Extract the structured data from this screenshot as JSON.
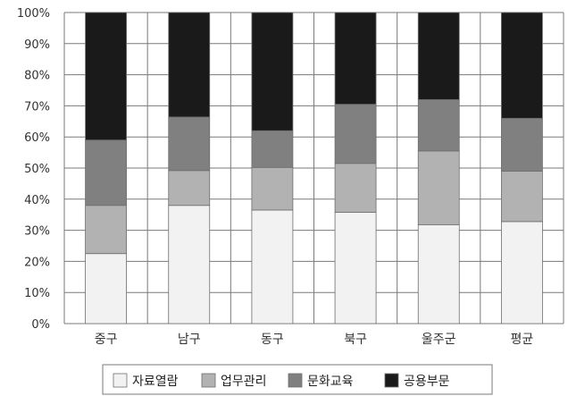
{
  "chart_data": {
    "type": "bar",
    "stacked": true,
    "categories": [
      "중구",
      "남구",
      "동구",
      "북구",
      "울주군",
      "평균"
    ],
    "series": [
      {
        "name": "자료열람",
        "color": "#f2f2f2",
        "values": [
          22.5,
          38,
          36.5,
          35.8,
          31.8,
          32.8
        ]
      },
      {
        "name": "업무관리",
        "color": "#b2b2b2",
        "values": [
          15.5,
          11.2,
          13.7,
          15.7,
          23.7,
          16.2
        ]
      },
      {
        "name": "문화교육",
        "color": "#808080",
        "values": [
          21,
          17.2,
          11.8,
          19,
          16.5,
          17
        ]
      },
      {
        "name": "공용부문",
        "color": "#1a1a1a",
        "values": [
          41,
          33.6,
          38,
          29.5,
          28,
          34
        ]
      }
    ],
    "ylim": [
      0,
      100
    ],
    "yticks": [
      "0%",
      "10%",
      "20%",
      "30%",
      "40%",
      "50%",
      "60%",
      "70%",
      "80%",
      "90%",
      "100%"
    ],
    "grid": true,
    "legend_position": "bottom"
  }
}
